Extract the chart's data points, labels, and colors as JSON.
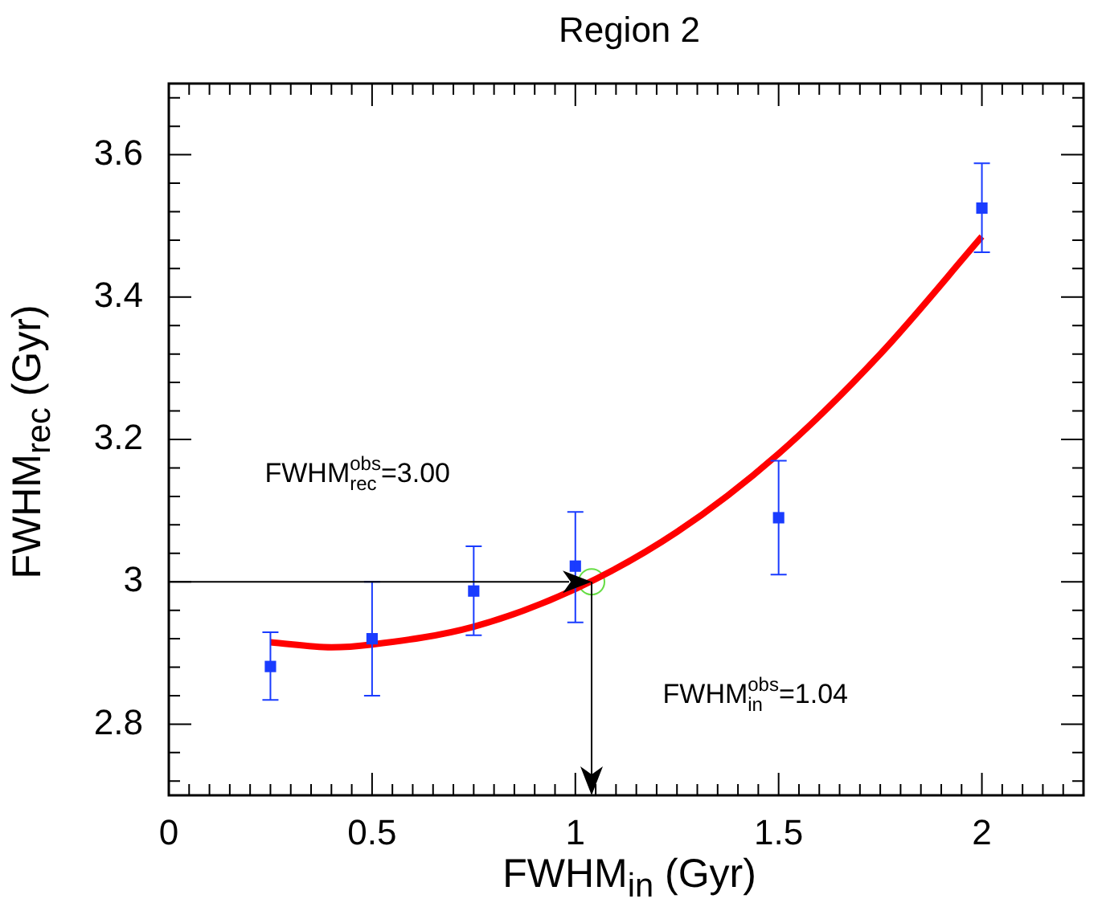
{
  "chart_data": {
    "type": "scatter",
    "title": "Region 2",
    "xlabel": "FWHM$_{in}$ (Gyr)",
    "ylabel": "FWHM$_{rec}$ (Gyr)",
    "xlim": [
      0,
      2.25
    ],
    "xticks": [
      0,
      0.5,
      1,
      1.5,
      2
    ],
    "ylim": [
      2.7,
      3.7
    ],
    "yticks": [
      2.8,
      3.0,
      3.2,
      3.4,
      3.6
    ],
    "series": [
      {
        "color": "#1a3cff",
        "marker": "square",
        "x": [
          0.25,
          0.5,
          0.75,
          1,
          1.5,
          2
        ],
        "values": [
          2.881,
          2.92,
          2.987,
          3.022,
          3.09,
          3.525
        ],
        "errors": [
          [
            2.834,
            2.929
          ],
          [
            2.84,
            3.0
          ],
          [
            2.925,
            3.05
          ],
          [
            2.943,
            3.098
          ],
          [
            3.01,
            3.17
          ],
          [
            3.463,
            3.588
          ]
        ]
      },
      {
        "type": "line",
        "color": "#ff0000",
        "marker": "none",
        "x": [
          0.25,
          0.4,
          0.5,
          0.75,
          1,
          1.25,
          1.5,
          1.75,
          2
        ],
        "values": [
          2.915,
          2.908,
          2.912,
          2.937,
          2.99,
          3.07,
          3.18,
          3.32,
          3.485
        ]
      },
      {
        "color": "#66dd44",
        "marker": "circle",
        "x": [
          1.04
        ],
        "values": [
          3.0
        ]
      }
    ],
    "annotations": [
      "FWHM$^{obs}$$_{rec}$=3.00",
      "FWHM$^{obs}$$_{in}$=1.04"
    ]
  }
}
